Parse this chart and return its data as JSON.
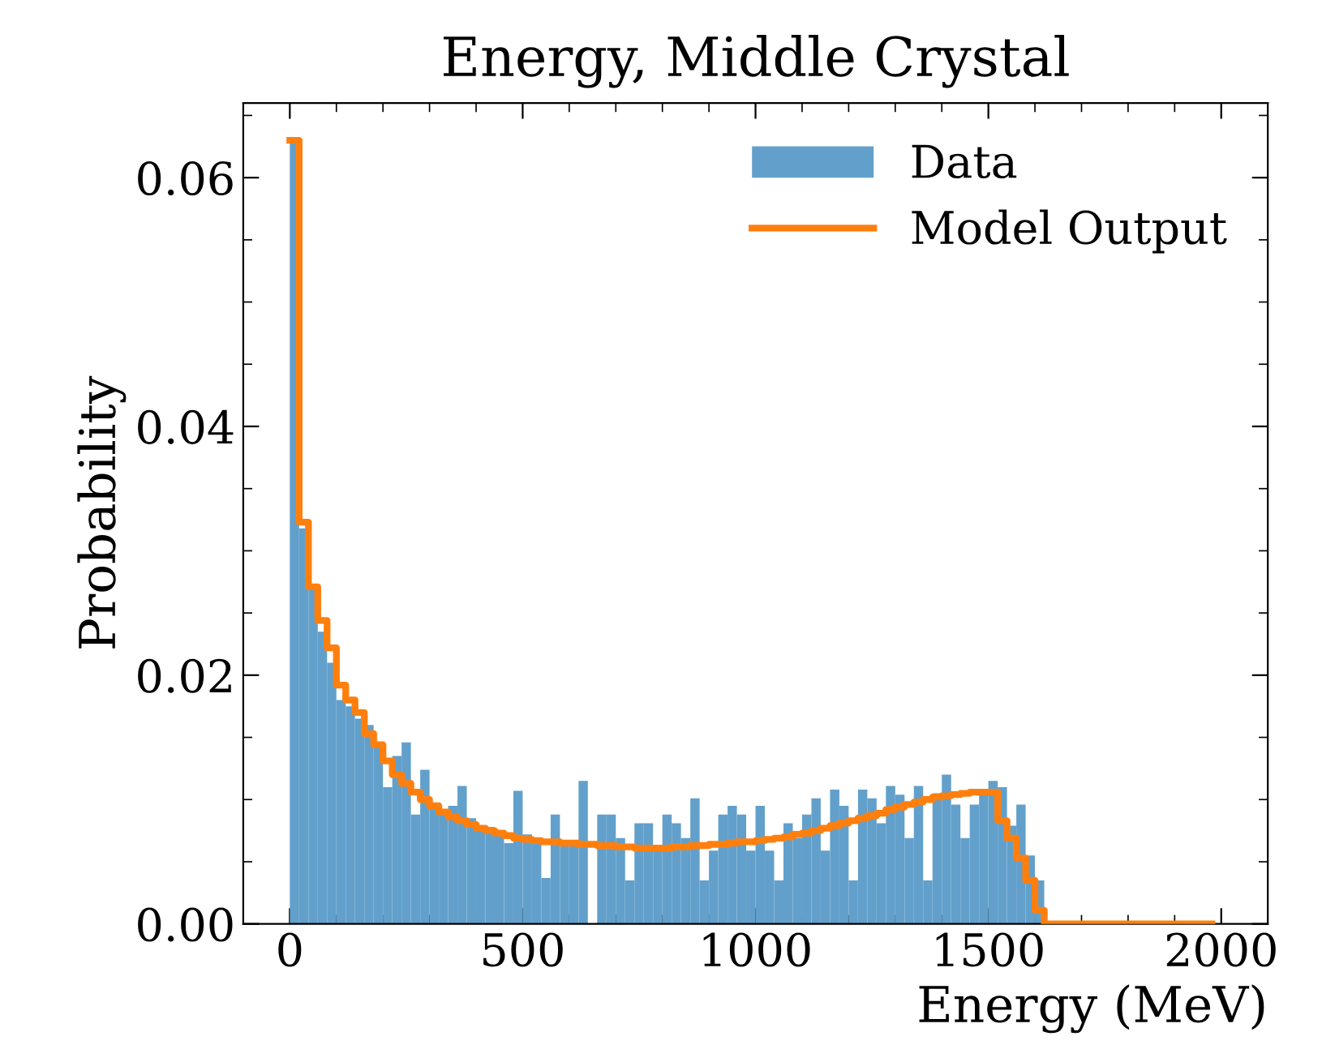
{
  "chart_data": {
    "type": "histogram",
    "title": "Energy, Middle Crystal",
    "xlabel": "Energy (MeV)",
    "ylabel": "Probability",
    "bins": [
      0,
      20,
      40,
      60,
      80,
      100,
      120,
      140,
      160,
      180,
      200,
      220,
      240,
      260,
      280,
      300,
      320,
      340,
      360,
      380,
      400,
      420,
      440,
      460,
      480,
      500,
      520,
      540,
      560,
      580,
      600,
      620,
      640,
      660,
      680,
      700,
      720,
      740,
      760,
      780,
      800,
      820,
      840,
      860,
      880,
      900,
      920,
      940,
      960,
      980,
      1000,
      1020,
      1040,
      1060,
      1080,
      1100,
      1120,
      1140,
      1160,
      1180,
      1200,
      1220,
      1240,
      1260,
      1280,
      1300,
      1320,
      1340,
      1360,
      1380,
      1400,
      1420,
      1440,
      1460,
      1480,
      1500,
      1520,
      1540,
      1560,
      1580,
      1600,
      1620,
      1640,
      1660,
      1680,
      1700,
      1720,
      1740,
      1760,
      1780,
      1800,
      1820,
      1840,
      1860,
      1880,
      1900,
      1920,
      1940,
      1960,
      1980,
      2000
    ],
    "series": [
      {
        "name": "Data",
        "color": "#62a0cb",
        "values": [
          0.063,
          0.0318,
          0.027,
          0.0235,
          0.021,
          0.018,
          0.0175,
          0.0165,
          0.016,
          0.0145,
          0.011,
          0.0135,
          0.0146,
          0.0088,
          0.0124,
          0.0095,
          0.0088,
          0.0095,
          0.0111,
          0.0085,
          0.0078,
          0.0078,
          0.0075,
          0.0065,
          0.0107,
          0.0072,
          0.0065,
          0.0037,
          0.0088,
          0.0065,
          0.0065,
          0.0115,
          0,
          0.0088,
          0.0088,
          0.0069,
          0.0035,
          0.0081,
          0.0081,
          0.0059,
          0.0088,
          0.0081,
          0.0069,
          0.0101,
          0.0035,
          0.0059,
          0.0088,
          0.0095,
          0.0088,
          0.0059,
          0.0095,
          0.0059,
          0.0035,
          0.0081,
          0.0069,
          0.0088,
          0.0101,
          0.0059,
          0.0108,
          0.0095,
          0.0035,
          0.0108,
          0.0101,
          0.0081,
          0.0111,
          0.0104,
          0.0069,
          0.0111,
          0.0035,
          0.0105,
          0.012,
          0.0096,
          0.0069,
          0.0096,
          0.0104,
          0.0115,
          0.011,
          0.0079,
          0.0096,
          0.0055,
          0.0035,
          0,
          0,
          0,
          0,
          0,
          0,
          0,
          0,
          0,
          0,
          0,
          0,
          0,
          0,
          0,
          0,
          0,
          0,
          0
        ]
      },
      {
        "name": "Model Output",
        "type": "step",
        "color": "#ff7f0e",
        "x": [
          0,
          20,
          40,
          60,
          80,
          100,
          120,
          140,
          160,
          180,
          200,
          220,
          240,
          260,
          280,
          300,
          320,
          340,
          360,
          380,
          400,
          420,
          440,
          460,
          480,
          500,
          520,
          540,
          560,
          580,
          600,
          620,
          640,
          660,
          680,
          700,
          720,
          740,
          760,
          780,
          800,
          820,
          840,
          860,
          880,
          900,
          920,
          940,
          960,
          980,
          1000,
          1020,
          1040,
          1060,
          1080,
          1100,
          1120,
          1140,
          1160,
          1180,
          1200,
          1220,
          1240,
          1260,
          1280,
          1300,
          1320,
          1340,
          1360,
          1380,
          1400,
          1420,
          1440,
          1460,
          1480,
          1500,
          1520,
          1540,
          1560,
          1580,
          1600,
          1620,
          1640,
          1660,
          1680,
          1700,
          1720,
          1740,
          1760,
          1780,
          1800,
          1820,
          1840,
          1860,
          1880,
          1900,
          1920,
          1940,
          1960,
          1980
        ],
        "values": [
          0.063,
          0.0323,
          0.0271,
          0.0244,
          0.0222,
          0.0192,
          0.018,
          0.017,
          0.0153,
          0.0144,
          0.0131,
          0.012,
          0.0113,
          0.0106,
          0.01,
          0.0095,
          0.009,
          0.0086,
          0.0083,
          0.008,
          0.0077,
          0.0075,
          0.0073,
          0.0071,
          0.0069,
          0.0068,
          0.0067,
          0.0066,
          0.0066,
          0.0065,
          0.0065,
          0.0064,
          0.0064,
          0.0063,
          0.0063,
          0.0062,
          0.0062,
          0.0061,
          0.0061,
          0.0061,
          0.0061,
          0.0062,
          0.0062,
          0.0063,
          0.0063,
          0.0064,
          0.0064,
          0.0065,
          0.0066,
          0.0066,
          0.0067,
          0.0068,
          0.0069,
          0.007,
          0.0072,
          0.0073,
          0.0075,
          0.0077,
          0.0079,
          0.0081,
          0.0083,
          0.0085,
          0.0087,
          0.0089,
          0.0092,
          0.0094,
          0.0096,
          0.0098,
          0.01,
          0.0102,
          0.0103,
          0.0104,
          0.0105,
          0.0106,
          0.0106,
          0.0106,
          0.0083,
          0.0069,
          0.0053,
          0.0035,
          0.0011,
          0,
          0,
          0,
          0,
          0,
          0,
          0,
          0,
          0,
          0,
          0,
          0,
          0,
          0,
          0,
          0,
          0,
          0,
          0
        ]
      }
    ],
    "xlim": [
      -100,
      2100
    ],
    "xticks": [
      0,
      500,
      1000,
      1500,
      2000,
      {
        "value": 100,
        "label": null
      },
      {
        "value": 200,
        "label": null
      },
      {
        "value": 300,
        "label": null
      },
      {
        "value": 400,
        "label": null
      },
      {
        "value": 600,
        "label": null
      },
      {
        "value": 700,
        "label": null
      },
      {
        "value": 800,
        "label": null
      },
      {
        "value": 900,
        "label": null
      },
      {
        "value": 1100,
        "label": null
      },
      {
        "value": 1200,
        "label": null
      },
      {
        "value": 1300,
        "label": null
      },
      {
        "value": 1400,
        "label": null
      },
      {
        "value": 1600,
        "label": null
      },
      {
        "value": 1700,
        "label": null
      },
      {
        "value": 1800,
        "label": null
      },
      {
        "value": 1900,
        "label": null
      }
    ],
    "ylim": [
      0,
      0.066
    ],
    "yticks": [
      {
        "value": 0,
        "label": "0.00"
      },
      {
        "value": 0.02,
        "label": "0.02"
      },
      {
        "value": 0.04,
        "label": "0.04"
      },
      {
        "value": 0.06,
        "label": "0.06"
      },
      {
        "value": 0.005,
        "label": null
      },
      {
        "value": 0.01,
        "label": null
      },
      {
        "value": 0.015,
        "label": null
      },
      {
        "value": 0.025,
        "label": null
      },
      {
        "value": 0.03,
        "label": null
      },
      {
        "value": 0.035,
        "label": null
      },
      {
        "value": 0.045,
        "label": null
      },
      {
        "value": 0.05,
        "label": null
      },
      {
        "value": 0.055,
        "label": null
      },
      {
        "value": 0.065,
        "label": null
      }
    ],
    "grid": false,
    "legend": "top right"
  }
}
